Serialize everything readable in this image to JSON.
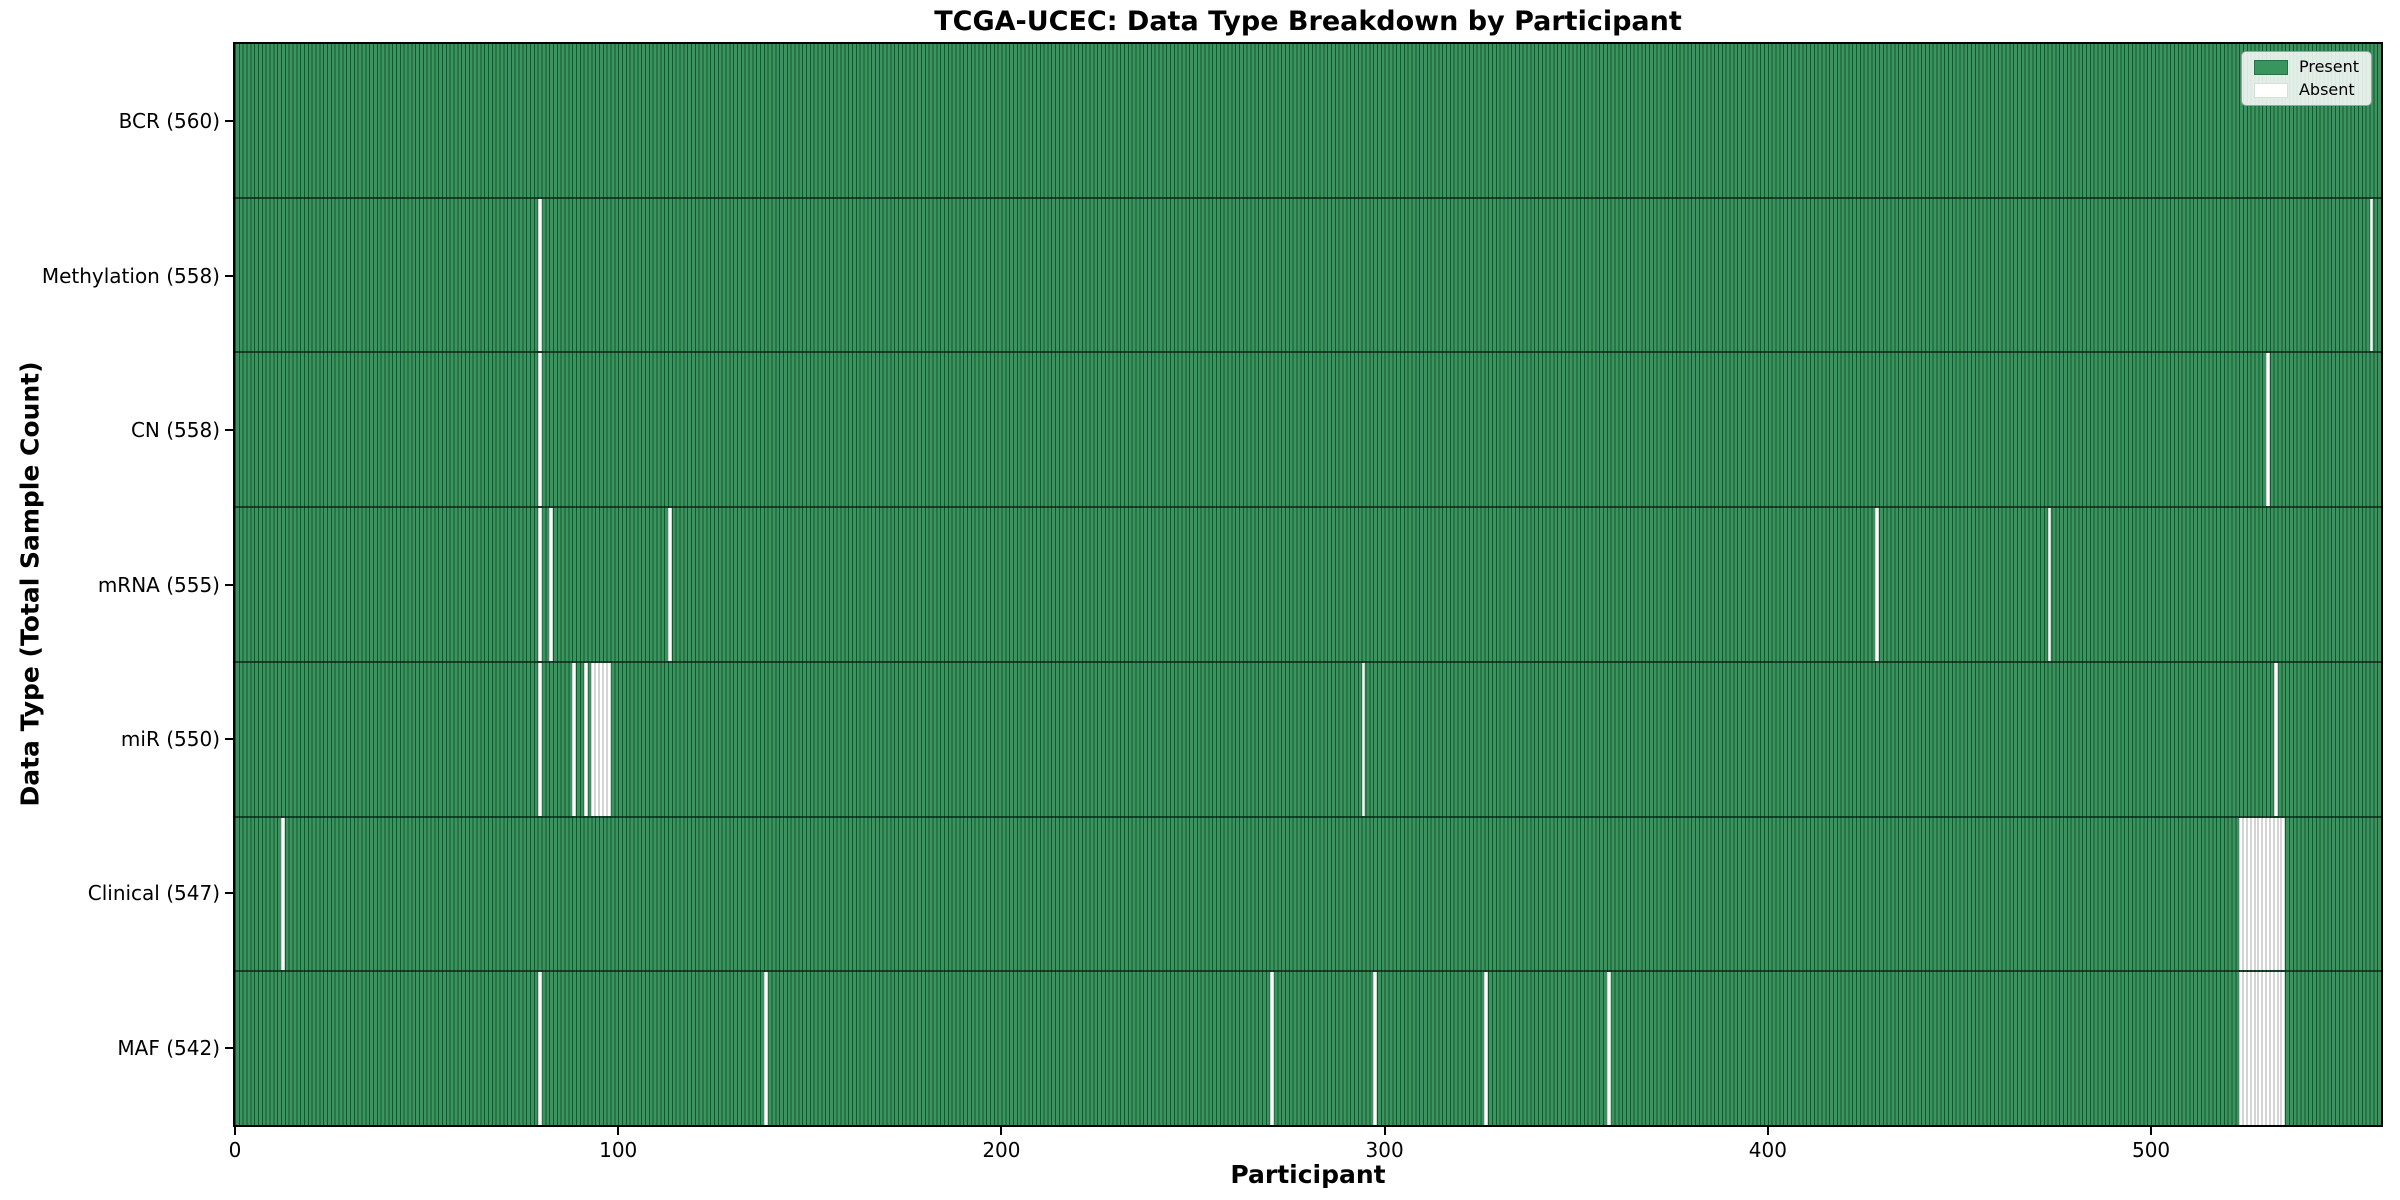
{
  "figure": {
    "title": "TCGA-UCEC: Data Type Breakdown by Participant",
    "xlabel": "Participant",
    "ylabel": "Data Type (Total Sample Count)"
  },
  "legend": {
    "present_label": "Present",
    "absent_label": "Absent"
  },
  "colors": {
    "present": "#38955e",
    "present_edge": "#1b5232",
    "absent": "#ffffff",
    "absent_edge": "#d4d4d4",
    "row_divider": "rgba(0,0,0,0.55)",
    "spine": "#000000",
    "legend_border": "#9e9e9e"
  },
  "chart_data": {
    "type": "heatmap",
    "title": "TCGA-UCEC: Data Type Breakdown by Participant",
    "xlabel": "Participant",
    "ylabel": "Data Type (Total Sample Count)",
    "n_participants": 560,
    "xlim": [
      0,
      560
    ],
    "x_ticks": [
      0,
      100,
      200,
      300,
      400,
      500
    ],
    "grid": false,
    "legend_entries": [
      "Present",
      "Absent"
    ],
    "legend_position": "upper right",
    "rows": [
      {
        "label": "BCR (560)",
        "name": "BCR",
        "count": 560,
        "absent": []
      },
      {
        "label": "Methylation (558)",
        "name": "Methylation",
        "count": 558,
        "absent": [
          79,
          557
        ]
      },
      {
        "label": "CN (558)",
        "name": "CN",
        "count": 558,
        "absent": [
          79,
          530
        ]
      },
      {
        "label": "mRNA (555)",
        "name": "mRNA",
        "count": 555,
        "absent": [
          79,
          82,
          113,
          428,
          473
        ]
      },
      {
        "label": "miR (550)",
        "name": "miR",
        "count": 550,
        "absent": [
          79,
          88,
          91,
          93,
          94,
          95,
          96,
          97,
          294,
          532
        ]
      },
      {
        "label": "Clinical (547)",
        "name": "Clinical",
        "count": 547,
        "absent": [
          12,
          523,
          524,
          525,
          526,
          527,
          528,
          529,
          530,
          531,
          532,
          533,
          534
        ]
      },
      {
        "label": "MAF (542)",
        "name": "MAF",
        "count": 542,
        "absent": [
          79,
          138,
          270,
          297,
          326,
          358,
          523,
          524,
          525,
          526,
          527,
          528,
          529,
          530,
          531,
          532,
          533,
          534
        ]
      }
    ]
  }
}
